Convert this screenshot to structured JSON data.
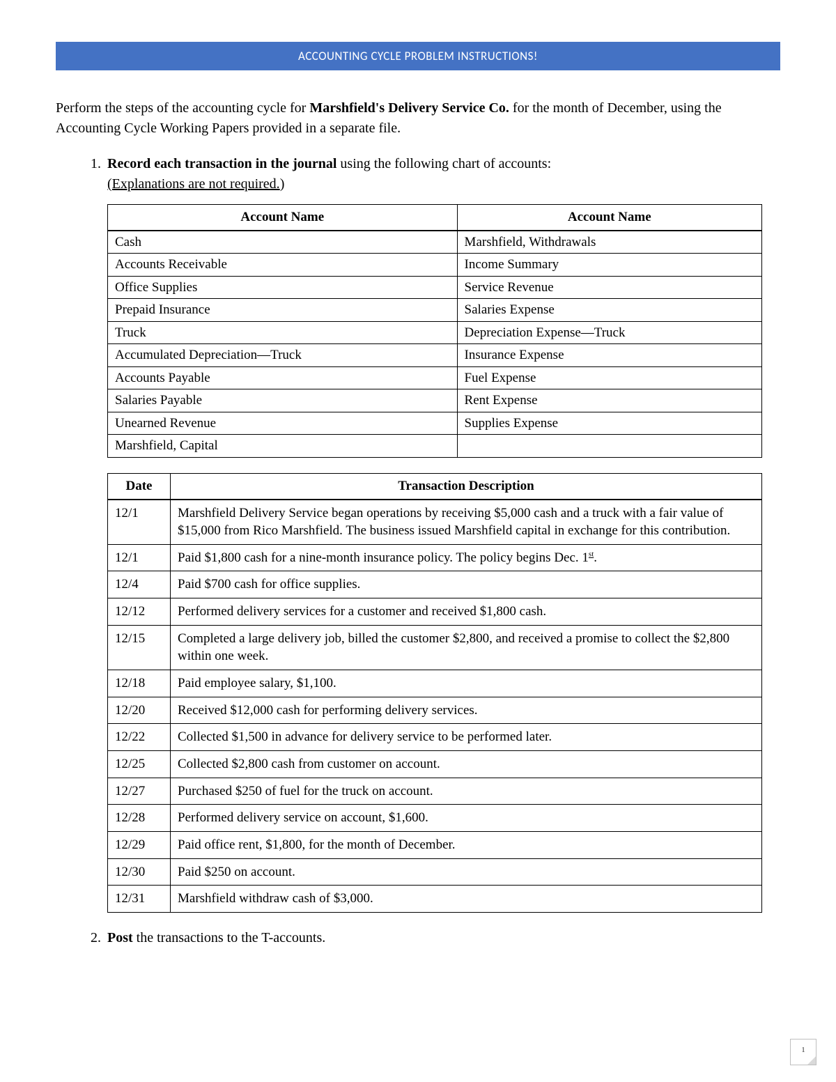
{
  "banner": {
    "title": "ACCOUNTING CYCLE PROBLEM INSTRUCTIONS!"
  },
  "intro": {
    "pre": "Perform the steps of the accounting cycle for ",
    "company": "Marshfield's Delivery Service Co.",
    "post": " for the month of December, using the Accounting Cycle Working Papers provided in a separate file."
  },
  "step1": {
    "lead_bold": "Record each transaction in the journal",
    "lead_rest": " using the following chart of accounts: ",
    "note_underlined": "(Explanations are not required.",
    "note_close": ")"
  },
  "accounts": {
    "header_left": "Account Name",
    "header_right": "Account Name",
    "rows": [
      [
        "Cash",
        "Marshfield, Withdrawals"
      ],
      [
        "Accounts Receivable",
        "Income Summary"
      ],
      [
        "Office Supplies",
        "Service Revenue"
      ],
      [
        "Prepaid Insurance",
        "Salaries Expense"
      ],
      [
        "Truck",
        "Depreciation Expense—Truck"
      ],
      [
        "Accumulated Depreciation—Truck",
        "Insurance Expense"
      ],
      [
        "Accounts Payable",
        "Fuel Expense"
      ],
      [
        "Salaries Payable",
        "Rent Expense"
      ],
      [
        "Unearned Revenue",
        "Supplies Expense"
      ],
      [
        "Marshfield, Capital",
        ""
      ]
    ]
  },
  "transactions": {
    "header_date": "Date",
    "header_desc": "Transaction Description",
    "rows": [
      {
        "date": "12/1",
        "desc": "Marshfield Delivery Service began operations by receiving $5,000 cash and a truck with a fair value of $15,000 from Rico Marshfield. The business issued Marshfield capital in exchange for this contribution."
      },
      {
        "date": "12/1",
        "desc": "Paid $1,800 cash for a nine-month insurance policy. The policy begins Dec. 1",
        "suffix_super": "st",
        "suffix": "."
      },
      {
        "date": "12/4",
        "desc": "Paid $700 cash for office supplies."
      },
      {
        "date": "12/12",
        "desc": "Performed delivery services for a customer and received $1,800 cash."
      },
      {
        "date": "12/15",
        "desc": "Completed a large delivery job, billed the customer $2,800, and received a promise to collect the $2,800 within one week."
      },
      {
        "date": "12/18",
        "desc": "Paid employee salary, $1,100."
      },
      {
        "date": "12/20",
        "desc": "Received $12,000 cash for performing delivery services."
      },
      {
        "date": "12/22",
        "desc": "Collected $1,500 in advance for delivery service to be performed later."
      },
      {
        "date": "12/25",
        "desc": "Collected $2,800 cash from customer on account."
      },
      {
        "date": "12/27",
        "desc": "Purchased $250 of fuel for the truck on account."
      },
      {
        "date": "12/28",
        "desc": "Performed delivery service on account, $1,600."
      },
      {
        "date": "12/29",
        "desc": "Paid office rent, $1,800, for the month of December."
      },
      {
        "date": "12/30",
        "desc": "Paid $250 on account."
      },
      {
        "date": "12/31",
        "desc": "Marshfield withdraw cash of $3,000."
      }
    ]
  },
  "step2": {
    "lead_bold": "Post",
    "lead_rest": " the transactions to the T-accounts."
  },
  "page_number": "1"
}
